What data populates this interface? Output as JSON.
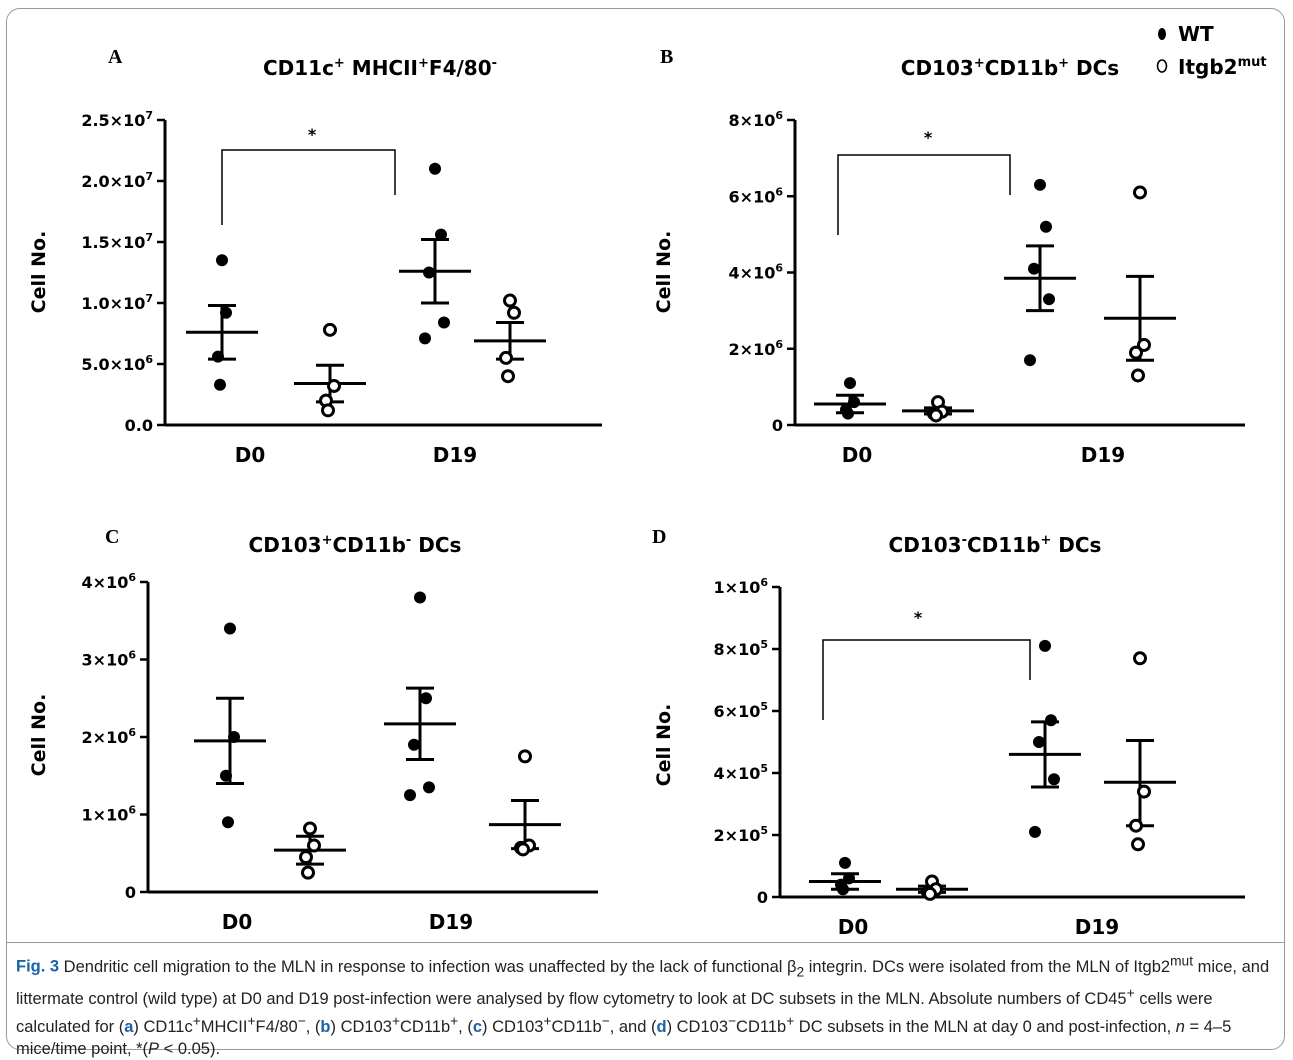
{
  "figure": {
    "legend": [
      {
        "label": "WT",
        "marker": "filled-circle"
      },
      {
        "label": "Itgb2",
        "sup": "mut",
        "marker": "open-circle"
      }
    ]
  },
  "chart_data": [
    {
      "type": "scatter",
      "panel": "A",
      "title": "CD11c⁺ MHCII⁺F4/80⁻",
      "ylabel": "Cell No.",
      "ylim": [
        0,
        25000000
      ],
      "yticks": [
        {
          "value": 0,
          "label": "0.0"
        },
        {
          "value": 5000000,
          "label": "5.0×10⁶"
        },
        {
          "value": 10000000,
          "label": "1.0×10⁷"
        },
        {
          "value": 15000000,
          "label": "1.5×10⁷"
        },
        {
          "value": 20000000,
          "label": "2.0×10⁷"
        },
        {
          "value": 25000000,
          "label": "2.5×10⁷"
        }
      ],
      "x_categories": [
        "D0",
        "D19"
      ],
      "groups": [
        {
          "series": "WT",
          "x": "D0",
          "points": [
            13500000,
            9200000,
            5600000,
            3300000
          ],
          "mean": 7600000,
          "sem_upper": 9800000,
          "sem_lower": 5400000
        },
        {
          "series": "Itgb2mut",
          "x": "D0",
          "points": [
            7800000,
            3200000,
            2000000,
            1200000
          ],
          "mean": 3400000,
          "sem_upper": 4900000,
          "sem_lower": 1900000
        },
        {
          "series": "WT",
          "x": "D19",
          "points": [
            21000000,
            15600000,
            12500000,
            8400000,
            7100000
          ],
          "mean": 12600000,
          "sem_upper": 15200000,
          "sem_lower": 10000000
        },
        {
          "series": "Itgb2mut",
          "x": "D19",
          "points": [
            10200000,
            9200000,
            5500000,
            4000000
          ],
          "mean": 6900000,
          "sem_upper": 8400000,
          "sem_lower": 5400000
        }
      ],
      "significance": {
        "between": [
          "WT D0",
          "WT D19"
        ],
        "label": "*"
      }
    },
    {
      "type": "scatter",
      "panel": "B",
      "title": "CD103⁺CD11b⁺ DCs",
      "ylabel": "Cell No.",
      "ylim": [
        0,
        8000000
      ],
      "yticks": [
        {
          "value": 0,
          "label": "0"
        },
        {
          "value": 2000000,
          "label": "2×10⁶"
        },
        {
          "value": 4000000,
          "label": "4×10⁶"
        },
        {
          "value": 6000000,
          "label": "6×10⁶"
        },
        {
          "value": 8000000,
          "label": "8×10⁶"
        }
      ],
      "x_categories": [
        "D0",
        "D19"
      ],
      "groups": [
        {
          "series": "WT",
          "x": "D0",
          "points": [
            1100000,
            600000,
            400000,
            300000
          ],
          "mean": 550000,
          "sem_upper": 780000,
          "sem_lower": 320000
        },
        {
          "series": "Itgb2mut",
          "x": "D0",
          "points": [
            600000,
            350000,
            300000,
            250000
          ],
          "mean": 370000,
          "sem_upper": 450000,
          "sem_lower": 290000
        },
        {
          "series": "WT",
          "x": "D19",
          "points": [
            6300000,
            5200000,
            4100000,
            3300000,
            1700000
          ],
          "mean": 3850000,
          "sem_upper": 4700000,
          "sem_lower": 3000000
        },
        {
          "series": "Itgb2mut",
          "x": "D19",
          "points": [
            6100000,
            2100000,
            1900000,
            1300000
          ],
          "mean": 2800000,
          "sem_upper": 3900000,
          "sem_lower": 1700000
        }
      ],
      "significance": {
        "between": [
          "WT D0",
          "WT D19"
        ],
        "label": "*"
      }
    },
    {
      "type": "scatter",
      "panel": "C",
      "title": "CD103⁺CD11b⁻ DCs",
      "ylabel": "Cell No.",
      "ylim": [
        0,
        4000000
      ],
      "yticks": [
        {
          "value": 0,
          "label": "0"
        },
        {
          "value": 1000000,
          "label": "1×10⁶"
        },
        {
          "value": 2000000,
          "label": "2×10⁶"
        },
        {
          "value": 3000000,
          "label": "3×10⁶"
        },
        {
          "value": 4000000,
          "label": "4×10⁶"
        }
      ],
      "x_categories": [
        "D0",
        "D19"
      ],
      "groups": [
        {
          "series": "WT",
          "x": "D0",
          "points": [
            3400000,
            2000000,
            1500000,
            900000
          ],
          "mean": 1950000,
          "sem_upper": 2500000,
          "sem_lower": 1400000
        },
        {
          "series": "Itgb2mut",
          "x": "D0",
          "points": [
            820000,
            600000,
            450000,
            250000
          ],
          "mean": 540000,
          "sem_upper": 720000,
          "sem_lower": 360000
        },
        {
          "series": "WT",
          "x": "D19",
          "points": [
            3800000,
            2500000,
            1900000,
            1350000,
            1250000
          ],
          "mean": 2170000,
          "sem_upper": 2630000,
          "sem_lower": 1710000
        },
        {
          "series": "Itgb2mut",
          "x": "D19",
          "points": [
            1750000,
            600000,
            570000,
            550000
          ],
          "mean": 870000,
          "sem_upper": 1180000,
          "sem_lower": 560000
        }
      ]
    },
    {
      "type": "scatter",
      "panel": "D",
      "title": "CD103⁻CD11b⁺ DCs",
      "ylabel": "Cell No.",
      "ylim": [
        0,
        1000000
      ],
      "yticks": [
        {
          "value": 0,
          "label": "0"
        },
        {
          "value": 200000,
          "label": "2×10⁵"
        },
        {
          "value": 400000,
          "label": "4×10⁵"
        },
        {
          "value": 600000,
          "label": "6×10⁵"
        },
        {
          "value": 800000,
          "label": "8×10⁵"
        },
        {
          "value": 1000000,
          "label": "1×10⁶"
        }
      ],
      "x_categories": [
        "D0",
        "D19"
      ],
      "groups": [
        {
          "series": "WT",
          "x": "D0",
          "points": [
            110000,
            60000,
            40000,
            25000
          ],
          "mean": 50000,
          "sem_upper": 75000,
          "sem_lower": 25000
        },
        {
          "series": "Itgb2mut",
          "x": "D0",
          "points": [
            50000,
            25000,
            15000,
            10000
          ],
          "mean": 25000,
          "sem_upper": 35000,
          "sem_lower": 15000
        },
        {
          "series": "WT",
          "x": "D19",
          "points": [
            810000,
            570000,
            500000,
            380000,
            210000
          ],
          "mean": 460000,
          "sem_upper": 565000,
          "sem_lower": 355000
        },
        {
          "series": "Itgb2mut",
          "x": "D19",
          "points": [
            770000,
            340000,
            230000,
            170000
          ],
          "mean": 370000,
          "sem_upper": 505000,
          "sem_lower": 230000
        }
      ],
      "significance": {
        "between": [
          "WT D0",
          "WT D19"
        ],
        "label": "*"
      }
    }
  ],
  "caption": {
    "label": "Fig. 3",
    "html": " Dendritic cell migration to the MLN in response to infection was unaffected by the lack of functional β<sub>2</sub> integrin. DCs were isolated from the MLN of Itgb2<sup>mut</sup> mice, and littermate control (wild type) at D0 and D19 post-infection were analysed by flow cytometry to look at DC subsets in the MLN. Absolute numbers of CD45<sup>+</sup> cells were calculated for (<b>a</b>) CD11c<sup>+</sup>MHCII<sup>+</sup>F4/80<sup>−</sup>, (<b>b</b>) CD103<sup>+</sup>CD11b<sup>+</sup>, (<b>c</b>) CD103<sup>+</sup>CD11b<sup>−</sup>, and (<b>d</b>) CD103<sup>−</sup>CD11b<sup>+</sup> DC subsets in the MLN at day 0 and post-infection, <i>n</i> = 4–5 mice/time point, *(<i>P</i> &lt; 0.05)."
  }
}
